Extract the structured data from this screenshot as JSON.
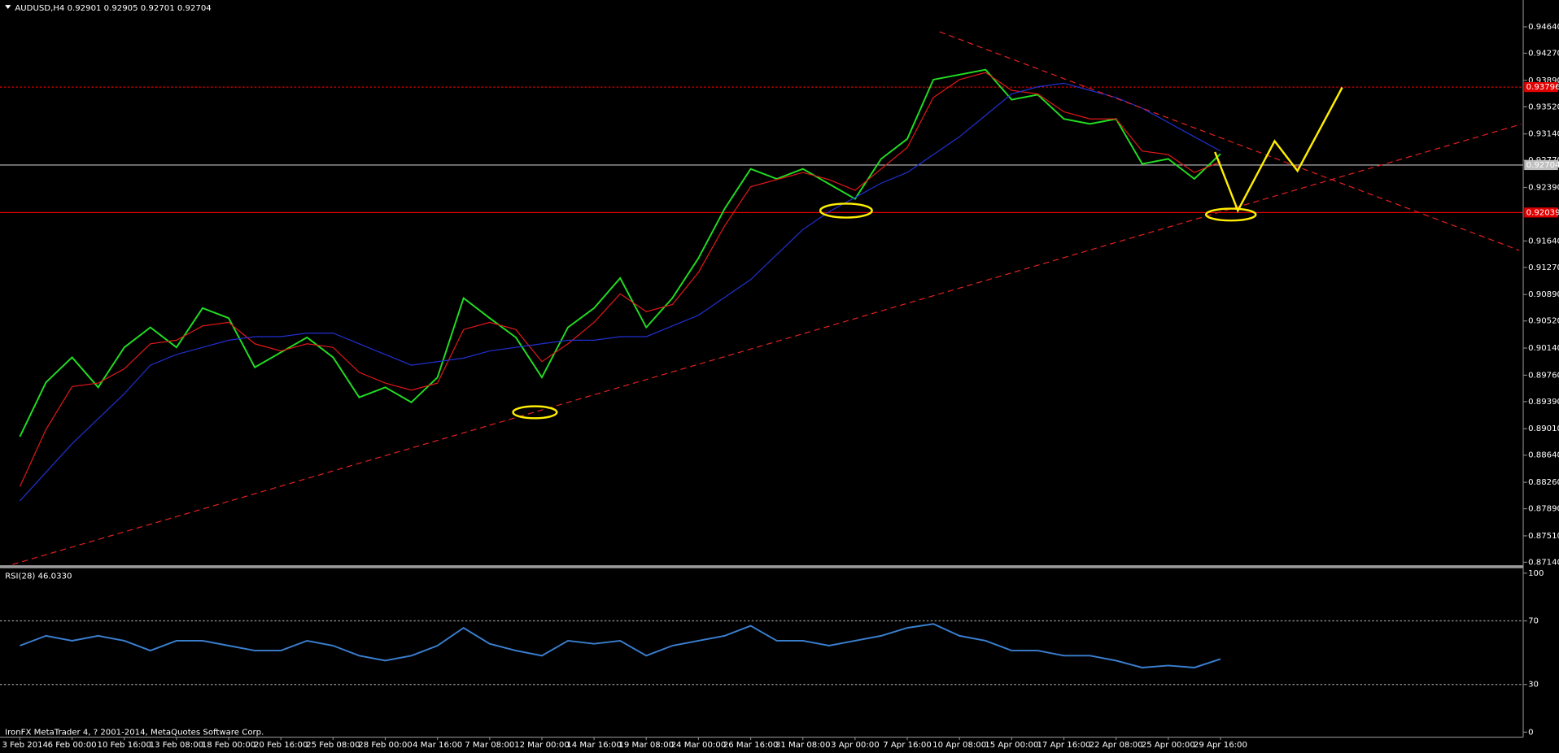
{
  "chart_data": [
    {
      "type": "line",
      "title": "AUDUSD,H4  0.92901 0.92905 0.92701 0.92704",
      "categories": [
        "3 Feb 2014",
        null,
        "6 Feb 00:00",
        null,
        "10 Feb 16:00",
        null,
        "13 Feb 08:00",
        null,
        "18 Feb 00:00",
        null,
        "20 Feb 16:00",
        null,
        "25 Feb 08:00",
        null,
        "28 Feb 00:00",
        null,
        "4 Mar 16:00",
        null,
        "7 Mar 08:00",
        null,
        "12 Mar 00:00",
        null,
        "14 Mar 16:00",
        null,
        "19 Mar 08:00",
        null,
        "24 Mar 00:00",
        null,
        "26 Mar 16:00",
        null,
        "31 Mar 08:00",
        null,
        "3 Apr 00:00",
        null,
        "7 Apr 16:00",
        null,
        "10 Apr 08:00",
        null,
        "15 Apr 00:00",
        null,
        "17 Apr 16:00",
        null,
        "22 Apr 08:00",
        null,
        "25 Apr 00:00",
        null,
        "29 Apr 16:00",
        null,
        null,
        null,
        null,
        null,
        null,
        null,
        null,
        null,
        null,
        null
      ],
      "series": [
        {
          "color": "#22dd22",
          "values": [
            0.889,
            0.8966,
            0.9001,
            0.8959,
            0.9015,
            0.9043,
            0.9015,
            0.907,
            0.9056,
            0.8987,
            0.9008,
            0.9029,
            0.9001,
            0.8945,
            0.8959,
            0.8938,
            0.8973,
            0.9084,
            0.9056,
            0.9029,
            0.8973,
            0.9043,
            0.907,
            0.9112,
            0.9043,
            0.9084,
            0.914,
            0.9209,
            0.9265,
            0.9251,
            0.9265,
            0.9244,
            0.9223,
            0.9279,
            0.9307,
            0.939,
            0.9397,
            0.9404,
            0.9362,
            0.9369,
            0.9335,
            0.9328,
            0.9335,
            0.9272,
            0.9279,
            0.9251,
            0.9286,
            null,
            null,
            null,
            null,
            null,
            null,
            null,
            null,
            null,
            null,
            null
          ]
        },
        {
          "color": "#e01818",
          "values": [
            0.882,
            0.89,
            0.896,
            0.8965,
            0.8985,
            0.902,
            0.9025,
            0.9045,
            0.905,
            0.902,
            0.901,
            0.902,
            0.9015,
            0.898,
            0.8965,
            0.8955,
            0.8965,
            0.904,
            0.905,
            0.904,
            0.8995,
            0.902,
            0.905,
            0.909,
            0.9065,
            0.9075,
            0.912,
            0.9185,
            0.924,
            0.925,
            0.926,
            0.925,
            0.9235,
            0.9265,
            0.9295,
            0.9365,
            0.939,
            0.94,
            0.9375,
            0.937,
            0.9345,
            0.9335,
            0.9335,
            0.929,
            0.9285,
            0.926,
            0.9275,
            null,
            null,
            null,
            null,
            null,
            null,
            null,
            null,
            null,
            null,
            null
          ]
        },
        {
          "color": "#2030d0",
          "values": [
            0.88,
            0.884,
            0.888,
            0.8915,
            0.895,
            0.899,
            0.9005,
            0.9015,
            0.9025,
            0.903,
            0.903,
            0.9035,
            0.9035,
            0.902,
            0.9005,
            0.899,
            0.8995,
            0.9,
            0.901,
            0.9015,
            0.902,
            0.9025,
            0.9025,
            0.903,
            0.903,
            0.9045,
            0.906,
            0.9085,
            0.911,
            0.9145,
            0.918,
            0.9205,
            0.9225,
            0.9245,
            0.926,
            0.9285,
            0.931,
            0.934,
            0.937,
            0.938,
            0.9385,
            0.9375,
            0.9365,
            0.935,
            0.933,
            0.931,
            0.929,
            null,
            null,
            null,
            null,
            null,
            null,
            null,
            null,
            null,
            null,
            null
          ]
        }
      ],
      "ylim": [
        0.87084,
        0.94807
      ],
      "yticks": [
        {
          "value": 0.9464,
          "label": "0.94640"
        },
        {
          "value": 0.9427,
          "label": "0.94270"
        },
        {
          "value": 0.9389,
          "label": "0.93890"
        },
        {
          "value": 0.9352,
          "label": "0.93520"
        },
        {
          "value": 0.9314,
          "label": "0.93140"
        },
        {
          "value": 0.9277,
          "label": "0.92770"
        },
        {
          "value": 0.9239,
          "label": "0.92390"
        },
        {
          "value": 0.9164,
          "label": "0.91640"
        },
        {
          "value": 0.9127,
          "label": "0.91270"
        },
        {
          "value": 0.9089,
          "label": "0.90890"
        },
        {
          "value": 0.9052,
          "label": "0.90520"
        },
        {
          "value": 0.9014,
          "label": "0.90140"
        },
        {
          "value": 0.8976,
          "label": "0.89760"
        },
        {
          "value": 0.8939,
          "label": "0.89390"
        },
        {
          "value": 0.8901,
          "label": "0.89010"
        },
        {
          "value": 0.8864,
          "label": "0.88640"
        },
        {
          "value": 0.8826,
          "label": "0.88260"
        },
        {
          "value": 0.8789,
          "label": "0.87890"
        },
        {
          "value": 0.8751,
          "label": "0.87510"
        },
        {
          "value": 0.8714,
          "label": "0.87140"
        }
      ],
      "levels": [
        {
          "value": 0.93796,
          "label": "0.93796",
          "color": "#e00000"
        },
        {
          "value": 0.92704,
          "label": "0.92704",
          "color": "#c0c0c0"
        },
        {
          "value": 0.92039,
          "label": "0.92039",
          "color": "#e00000"
        }
      ],
      "grid": false
    },
    {
      "type": "line",
      "title": "RSI(28) 46.0330",
      "series": [
        {
          "color": "#3a7fd0",
          "values": [
            54.4,
            60.6,
            57.5,
            60.6,
            57.5,
            51.3,
            57.5,
            57.5,
            54.4,
            51.3,
            51.3,
            57.5,
            54.4,
            48.1,
            45.0,
            48.1,
            54.4,
            65.6,
            55.6,
            51.3,
            48.1,
            57.5,
            55.6,
            57.5,
            48.1,
            54.4,
            57.5,
            60.6,
            66.9,
            57.5,
            57.5,
            54.4,
            57.5,
            60.6,
            65.6,
            68.1,
            60.6,
            57.5,
            51.3,
            51.3,
            48.1,
            48.1,
            45.0,
            40.6,
            41.9,
            40.6,
            46.0
          ]
        }
      ],
      "ylim": [
        0,
        100
      ],
      "yticks": [
        100,
        70,
        30,
        0
      ],
      "grid": true
    }
  ],
  "footer": "IronFX MetaTrader 4, ? 2001-2014, MetaQuotes Software Corp."
}
